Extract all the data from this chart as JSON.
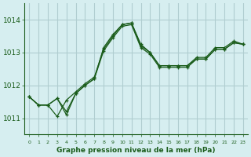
{
  "background_color": "#d6eef0",
  "grid_color": "#b0cdd0",
  "line_color": "#1a5c1a",
  "marker_color": "#1a5c1a",
  "title": "Graphe pression niveau de la mer (hPa)",
  "xlabel_ticks": [
    0,
    1,
    2,
    3,
    4,
    5,
    6,
    7,
    8,
    9,
    10,
    11,
    12,
    13,
    14,
    15,
    16,
    17,
    18,
    19,
    20,
    21,
    22,
    23
  ],
  "ylim": [
    1010.5,
    1014.5
  ],
  "xlim": [
    -0.5,
    23.5
  ],
  "yticks": [
    1011,
    1012,
    1013,
    1014
  ],
  "series": [
    [
      1011.65,
      1011.4,
      1011.4,
      1011.6,
      1011.1,
      1011.75,
      1012.0,
      1012.2,
      1013.15,
      1013.55,
      1013.85,
      1013.9,
      1013.25,
      1013.0,
      1012.6,
      1012.6,
      1012.6,
      1012.6,
      1012.85,
      1012.85,
      1013.15,
      1013.15,
      1013.35,
      1013.25
    ],
    [
      1011.65,
      1011.4,
      1011.4,
      1011.6,
      1011.2,
      1011.75,
      1012.0,
      1012.2,
      1013.05,
      1013.45,
      1013.8,
      1013.85,
      1013.15,
      1012.95,
      1012.55,
      1012.55,
      1012.55,
      1012.55,
      1012.8,
      1012.8,
      1013.1,
      1013.1,
      1013.3,
      1013.25
    ],
    [
      1011.65,
      1011.4,
      1011.4,
      1011.05,
      1011.55,
      1011.8,
      1012.05,
      1012.25,
      1013.1,
      1013.5,
      1013.85,
      1013.9,
      1013.2,
      1013.0,
      1012.6,
      1012.6,
      1012.6,
      1012.6,
      1012.8,
      1012.8,
      1013.1,
      1013.1,
      1013.3,
      1013.25
    ]
  ]
}
